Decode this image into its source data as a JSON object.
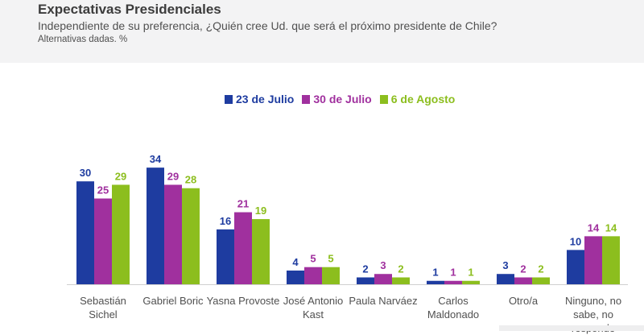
{
  "header": {
    "title": "Expectativas Presidenciales",
    "subtitle": "Independiente de su preferencia, ¿Quién cree Ud. que será el próximo presidente de Chile?",
    "note": "Alternativas dadas. %"
  },
  "chart_data": {
    "type": "bar",
    "title": "",
    "xlabel": "",
    "ylabel": "",
    "ylim": [
      0,
      36
    ],
    "grid": false,
    "legend_position": "top-center",
    "categories": [
      "Sebastián Sichel",
      "Gabriel Boric",
      "Yasna Provoste",
      "José Antonio Kast",
      "Paula Narváez",
      "Carlos Maldonado",
      "Otro/a",
      "Ninguno, no sabe, no responde"
    ],
    "series": [
      {
        "name": "23 de Julio",
        "color": "#1e3ca0",
        "values": [
          30,
          34,
          16,
          4,
          2,
          1,
          3,
          10
        ]
      },
      {
        "name": "30 de Julio",
        "color": "#a0309e",
        "values": [
          25,
          29,
          21,
          5,
          3,
          1,
          2,
          14
        ]
      },
      {
        "name": "6 de Agosto",
        "color": "#8cbe1e",
        "values": [
          29,
          28,
          19,
          5,
          2,
          1,
          2,
          14
        ]
      }
    ]
  }
}
